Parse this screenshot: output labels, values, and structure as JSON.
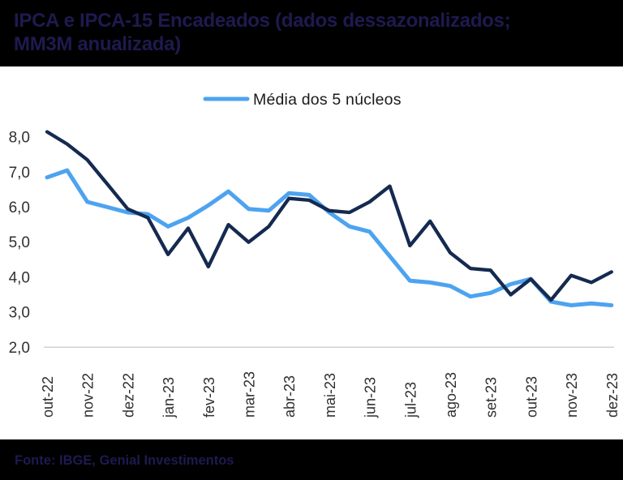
{
  "header": {
    "title_lines": [
      "IPCA e IPCA-15 Encadeados (dados dessazonalizados;",
      "MM3M anualizada)"
    ]
  },
  "legend": {
    "items": [
      {
        "label": "Média dos 5 núcleos",
        "color": "#4da3f0"
      }
    ]
  },
  "footer": {
    "source": "Fonte: IBGE, Genial Investimentos"
  },
  "colors": {
    "band_bg": "#000000",
    "band_text": "#1e1a4f",
    "chart_bg": "#ffffff",
    "axis_line": "#d2d2d2",
    "tick_text": "#303030",
    "legend_text": "#1a1a1a",
    "dark_series": "#152a50",
    "light_series": "#4da3f0"
  },
  "chart_data": {
    "type": "line",
    "title": "IPCA e IPCA-15 Encadeados (dados dessazonalizados; MM3M anualizada)",
    "frequency": "semimonthly (2 points per month, IPCA-15 and IPCA interleaved)",
    "x_tick_labels": [
      "out-22",
      "nov-22",
      "dez-22",
      "jan-23",
      "fev-23",
      "mar-23",
      "abr-23",
      "mai-23",
      "jun-23",
      "jul-23",
      "ago-23",
      "set-23",
      "out-23",
      "nov-23",
      "dez-23"
    ],
    "x_tick_every_n_points": 2,
    "ylim": [
      2.0,
      8.0
    ],
    "y_ticks": [
      {
        "label": "8,0",
        "value": 8.0
      },
      {
        "label": "7,0",
        "value": 7.0
      },
      {
        "label": "6,0",
        "value": 6.0
      },
      {
        "label": "5,0",
        "value": 5.0
      },
      {
        "label": "4,0",
        "value": 4.0
      },
      {
        "label": "3,0",
        "value": 3.0
      },
      {
        "label": "2,0",
        "value": 2.0
      }
    ],
    "grid": false,
    "legend_position": "top",
    "series": [
      {
        "name": "Média dos 5 núcleos",
        "in_legend": true,
        "color": "#4da3f0",
        "values": [
          6.85,
          7.05,
          6.15,
          6.0,
          5.85,
          5.8,
          5.45,
          5.7,
          6.05,
          6.45,
          5.95,
          5.9,
          6.4,
          6.35,
          5.85,
          5.45,
          5.3,
          4.6,
          3.9,
          3.85,
          3.75,
          3.45,
          3.55,
          3.8,
          3.95,
          3.3,
          3.2,
          3.25,
          3.2
        ]
      },
      {
        "name": "IPCA e IPCA-15 encadeados (MM3M anualizada)",
        "in_legend": false,
        "color": "#152a50",
        "values": [
          8.15,
          7.8,
          7.35,
          6.65,
          5.95,
          5.7,
          4.65,
          5.4,
          4.3,
          5.5,
          5.0,
          5.45,
          6.25,
          6.2,
          5.9,
          5.85,
          6.15,
          6.6,
          4.9,
          5.6,
          4.7,
          4.25,
          4.2,
          3.5,
          3.95,
          3.35,
          4.05,
          3.85,
          4.15
        ]
      }
    ]
  }
}
